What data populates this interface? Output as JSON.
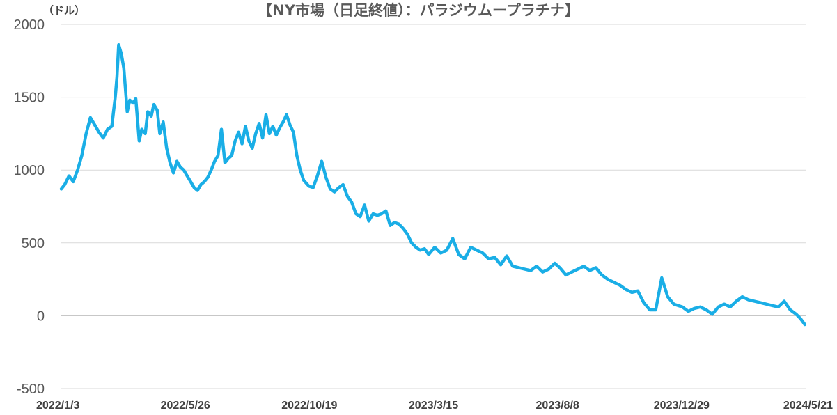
{
  "chart_data": {
    "type": "line",
    "title": "【NY市場（日足終値）：パラジウムープラチナ】",
    "unit_label": "（ドル）",
    "xlabel": "",
    "ylabel": "",
    "ylim": [
      -500,
      2000
    ],
    "y_ticks": [
      2000,
      1500,
      1000,
      500,
      0,
      -500
    ],
    "y_tick_labels": [
      "2000",
      "1500",
      "1000",
      "500",
      "0",
      "-500"
    ],
    "x_tick_labels": [
      "2022/1/3",
      "2022/5/26",
      "2022/10/19",
      "2023/3/15",
      "2023/8/8",
      "2023/12/29",
      "2024/5/21"
    ],
    "grid": true,
    "legend": "none",
    "colors": {
      "series": "#1aaee6",
      "grid": "#d9d9d9"
    },
    "series": [
      {
        "x": [
          "2022-01-03",
          "2022-01-07",
          "2022-01-12",
          "2022-01-17",
          "2022-01-22",
          "2022-01-27",
          "2022-02-01",
          "2022-02-06",
          "2022-02-11",
          "2022-02-16",
          "2022-02-21",
          "2022-02-26",
          "2022-03-03",
          "2022-03-05",
          "2022-03-07",
          "2022-03-09",
          "2022-03-11",
          "2022-03-14",
          "2022-03-17",
          "2022-03-21",
          "2022-03-24",
          "2022-03-28",
          "2022-03-31",
          "2022-04-04",
          "2022-04-07",
          "2022-04-11",
          "2022-04-14",
          "2022-04-18",
          "2022-04-21",
          "2022-04-25",
          "2022-04-28",
          "2022-05-02",
          "2022-05-06",
          "2022-05-10",
          "2022-05-14",
          "2022-05-18",
          "2022-05-22",
          "2022-05-26",
          "2022-05-30",
          "2022-06-03",
          "2022-06-07",
          "2022-06-11",
          "2022-06-15",
          "2022-06-19",
          "2022-06-23",
          "2022-06-27",
          "2022-07-01",
          "2022-07-05",
          "2022-07-09",
          "2022-07-13",
          "2022-07-17",
          "2022-07-21",
          "2022-07-25",
          "2022-07-29",
          "2022-08-02",
          "2022-08-06",
          "2022-08-10",
          "2022-08-14",
          "2022-08-18",
          "2022-08-22",
          "2022-08-26",
          "2022-08-30",
          "2022-09-03",
          "2022-09-07",
          "2022-09-11",
          "2022-09-15",
          "2022-09-19",
          "2022-09-23",
          "2022-09-27",
          "2022-10-01",
          "2022-10-05",
          "2022-10-09",
          "2022-10-13",
          "2022-10-19",
          "2022-10-24",
          "2022-10-29",
          "2022-11-03",
          "2022-11-08",
          "2022-11-13",
          "2022-11-18",
          "2022-11-23",
          "2022-11-28",
          "2022-12-03",
          "2022-12-08",
          "2022-12-13",
          "2022-12-18",
          "2022-12-23",
          "2022-12-28",
          "2023-01-02",
          "2023-01-07",
          "2023-01-12",
          "2023-01-17",
          "2023-01-22",
          "2023-01-27",
          "2023-02-01",
          "2023-02-06",
          "2023-02-11",
          "2023-02-16",
          "2023-02-21",
          "2023-02-26",
          "2023-03-03",
          "2023-03-08",
          "2023-03-15",
          "2023-03-22",
          "2023-03-29",
          "2023-04-05",
          "2023-04-12",
          "2023-04-19",
          "2023-04-26",
          "2023-05-03",
          "2023-05-10",
          "2023-05-17",
          "2023-05-24",
          "2023-05-31",
          "2023-06-07",
          "2023-06-14",
          "2023-06-21",
          "2023-06-28",
          "2023-07-05",
          "2023-07-12",
          "2023-07-19",
          "2023-07-26",
          "2023-08-02",
          "2023-08-08",
          "2023-08-15",
          "2023-08-22",
          "2023-08-29",
          "2023-09-05",
          "2023-09-12",
          "2023-09-19",
          "2023-09-26",
          "2023-10-03",
          "2023-10-10",
          "2023-10-17",
          "2023-10-24",
          "2023-10-31",
          "2023-11-07",
          "2023-11-14",
          "2023-11-21",
          "2023-11-28",
          "2023-12-05",
          "2023-12-12",
          "2023-12-19",
          "2023-12-29",
          "2024-01-05",
          "2024-01-12",
          "2024-01-19",
          "2024-01-26",
          "2024-02-02",
          "2024-02-09",
          "2024-02-16",
          "2024-02-23",
          "2024-03-01",
          "2024-03-08",
          "2024-03-15",
          "2024-03-22",
          "2024-03-29",
          "2024-04-05",
          "2024-04-12",
          "2024-04-19",
          "2024-04-26",
          "2024-05-03",
          "2024-05-10",
          "2024-05-15",
          "2024-05-20"
        ],
        "values": [
          870,
          900,
          960,
          920,
          1000,
          1100,
          1250,
          1360,
          1310,
          1260,
          1220,
          1280,
          1300,
          1400,
          1500,
          1640,
          1860,
          1800,
          1700,
          1400,
          1480,
          1460,
          1490,
          1200,
          1280,
          1250,
          1400,
          1370,
          1450,
          1410,
          1250,
          1330,
          1150,
          1050,
          980,
          1060,
          1020,
          1000,
          960,
          920,
          880,
          860,
          900,
          920,
          950,
          1000,
          1060,
          1100,
          1280,
          1050,
          1080,
          1100,
          1200,
          1260,
          1180,
          1300,
          1200,
          1150,
          1250,
          1320,
          1220,
          1380,
          1250,
          1300,
          1240,
          1290,
          1330,
          1380,
          1310,
          1260,
          1100,
          1000,
          930,
          890,
          880,
          960,
          1060,
          950,
          870,
          850,
          880,
          900,
          820,
          780,
          700,
          680,
          760,
          650,
          700,
          690,
          700,
          720,
          620,
          640,
          630,
          600,
          560,
          500,
          470,
          450,
          460,
          420,
          470,
          430,
          450,
          530,
          420,
          390,
          470,
          450,
          430,
          390,
          400,
          350,
          410,
          340,
          330,
          320,
          310,
          340,
          300,
          320,
          360,
          330,
          280,
          300,
          320,
          340,
          310,
          330,
          280,
          250,
          230,
          210,
          180,
          160,
          170,
          90,
          40,
          40,
          260,
          130,
          80,
          60,
          30,
          50,
          60,
          40,
          10,
          60,
          80,
          60,
          100,
          130,
          110,
          100,
          90,
          80,
          70,
          60,
          100,
          40,
          10,
          -20,
          -60
        ]
      }
    ]
  }
}
